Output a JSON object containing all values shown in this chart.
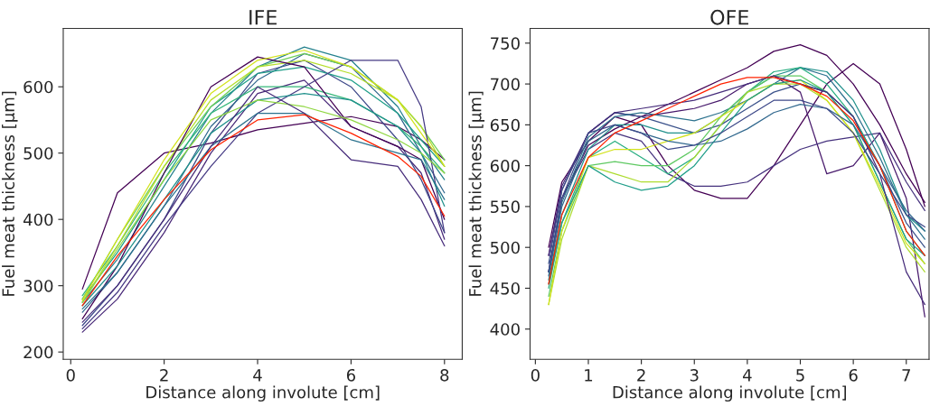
{
  "chart_data": [
    {
      "type": "line",
      "title": "IFE",
      "xlabel": "Distance along involute [cm]",
      "ylabel": "Fuel meat thickness [μm]",
      "x": [
        0.25,
        1,
        2,
        3,
        4,
        5,
        6,
        7,
        7.5,
        8
      ],
      "xlim": [
        -0.16,
        8.38
      ],
      "ylim": [
        189,
        688
      ],
      "xticks": [
        0,
        2,
        4,
        6,
        8
      ],
      "yticks": [
        200,
        300,
        400,
        500,
        600
      ],
      "series": [
        {
          "color": "#440154",
          "values": [
            295,
            440,
            500,
            515,
            535,
            545,
            555,
            540,
            520,
            490
          ]
        },
        {
          "color": "#482878",
          "values": [
            230,
            280,
            380,
            500,
            590,
            610,
            540,
            510,
            470,
            370
          ]
        },
        {
          "color": "#3e4989",
          "values": [
            240,
            300,
            400,
            530,
            620,
            640,
            600,
            520,
            460,
            380
          ]
        },
        {
          "color": "#31688e",
          "values": [
            260,
            320,
            420,
            540,
            610,
            650,
            630,
            560,
            500,
            440
          ]
        },
        {
          "color": "#26828e",
          "values": [
            275,
            340,
            450,
            560,
            630,
            660,
            640,
            570,
            510,
            460
          ]
        },
        {
          "color": "#1f9e89",
          "values": [
            280,
            350,
            460,
            570,
            620,
            630,
            610,
            560,
            520,
            480
          ]
        },
        {
          "color": "#35b779",
          "values": [
            285,
            360,
            470,
            560,
            600,
            600,
            580,
            540,
            510,
            470
          ]
        },
        {
          "color": "#6ece58",
          "values": [
            280,
            370,
            480,
            570,
            630,
            650,
            630,
            580,
            540,
            490
          ]
        },
        {
          "color": "#b5de2b",
          "values": [
            275,
            360,
            480,
            580,
            630,
            640,
            620,
            580,
            540,
            480
          ]
        },
        {
          "color": "#440154",
          "values": [
            250,
            330,
            470,
            600,
            645,
            630,
            540,
            510,
            490,
            400
          ]
        },
        {
          "color": "#443983",
          "values": [
            235,
            290,
            390,
            480,
            560,
            600,
            640,
            640,
            570,
            380
          ]
        },
        {
          "color": "#21918c",
          "values": [
            270,
            330,
            430,
            530,
            580,
            590,
            580,
            540,
            500,
            420
          ]
        },
        {
          "color": "#90d743",
          "values": [
            275,
            355,
            460,
            550,
            580,
            570,
            550,
            520,
            500,
            470
          ]
        },
        {
          "color": "#d2e21b",
          "values": [
            278,
            370,
            490,
            590,
            640,
            655,
            630,
            580,
            530,
            480
          ]
        },
        {
          "color": "#2c728e",
          "values": [
            265,
            320,
            420,
            510,
            560,
            560,
            520,
            500,
            490,
            430
          ]
        },
        {
          "color": "#472d7b",
          "values": [
            245,
            300,
            400,
            510,
            600,
            560,
            490,
            480,
            430,
            360
          ]
        },
        {
          "color": "#ff2200",
          "values": [
            270,
            345,
            430,
            505,
            550,
            558,
            530,
            495,
            465,
            405
          ]
        }
      ]
    },
    {
      "type": "line",
      "title": "OFE",
      "xlabel": "Distance along involute [cm]",
      "ylabel": "Fuel meat thickness [μm]",
      "x": [
        0.25,
        0.5,
        1,
        1.5,
        2,
        2.5,
        3,
        3.5,
        4,
        4.5,
        5,
        5.5,
        6,
        6.5,
        7,
        7.35
      ],
      "xlim": [
        -0.1,
        7.43
      ],
      "ylim": [
        363,
        768
      ],
      "xticks": [
        0,
        1,
        2,
        3,
        4,
        5,
        6,
        7
      ],
      "yticks": [
        400,
        450,
        500,
        550,
        600,
        650,
        700,
        750
      ],
      "series": [
        {
          "color": "#440154",
          "values": [
            470,
            560,
            625,
            645,
            660,
            675,
            690,
            705,
            720,
            740,
            748,
            735,
            700,
            650,
            590,
            555
          ]
        },
        {
          "color": "#440154",
          "values": [
            500,
            580,
            630,
            660,
            650,
            600,
            570,
            560,
            560,
            600,
            650,
            700,
            725,
            700,
            620,
            550
          ]
        },
        {
          "color": "#481a6c",
          "values": [
            490,
            570,
            640,
            665,
            660,
            665,
            670,
            680,
            700,
            710,
            690,
            590,
            600,
            640,
            560,
            415
          ]
        },
        {
          "color": "#46327e",
          "values": [
            470,
            560,
            620,
            640,
            630,
            590,
            575,
            575,
            580,
            600,
            620,
            630,
            635,
            640,
            580,
            545
          ]
        },
        {
          "color": "#3b528b",
          "values": [
            480,
            570,
            640,
            665,
            660,
            650,
            640,
            650,
            670,
            690,
            700,
            690,
            660,
            600,
            530,
            500
          ]
        },
        {
          "color": "#2c728e",
          "values": [
            470,
            555,
            635,
            660,
            665,
            660,
            655,
            665,
            680,
            700,
            720,
            710,
            670,
            610,
            540,
            510
          ]
        },
        {
          "color": "#21918c",
          "values": [
            460,
            540,
            620,
            650,
            650,
            640,
            640,
            660,
            690,
            710,
            720,
            715,
            680,
            620,
            540,
            520
          ]
        },
        {
          "color": "#28ae80",
          "values": [
            450,
            530,
            610,
            630,
            610,
            590,
            610,
            650,
            690,
            715,
            720,
            700,
            660,
            600,
            520,
            490
          ]
        },
        {
          "color": "#5ec962",
          "values": [
            440,
            520,
            600,
            605,
            600,
            600,
            620,
            660,
            690,
            710,
            710,
            690,
            650,
            580,
            510,
            480
          ]
        },
        {
          "color": "#addc30",
          "values": [
            430,
            510,
            600,
            590,
            580,
            580,
            610,
            650,
            690,
            700,
            700,
            680,
            640,
            570,
            500,
            470
          ]
        },
        {
          "color": "#d2e21b",
          "values": [
            430,
            520,
            610,
            620,
            620,
            630,
            640,
            660,
            680,
            700,
            705,
            680,
            640,
            575,
            505,
            480
          ]
        },
        {
          "color": "#1f9e89",
          "values": [
            455,
            530,
            600,
            580,
            570,
            575,
            600,
            640,
            680,
            700,
            705,
            690,
            650,
            580,
            510,
            490
          ]
        },
        {
          "color": "#31688e",
          "values": [
            465,
            550,
            630,
            650,
            640,
            630,
            625,
            630,
            645,
            665,
            675,
            670,
            650,
            600,
            545,
            520
          ]
        },
        {
          "color": "#472d7b",
          "values": [
            490,
            575,
            640,
            665,
            670,
            675,
            680,
            690,
            700,
            710,
            700,
            690,
            660,
            590,
            470,
            430
          ]
        },
        {
          "color": "#3e4989",
          "values": [
            470,
            560,
            640,
            650,
            640,
            620,
            625,
            640,
            660,
            680,
            680,
            670,
            640,
            590,
            540,
            525
          ]
        },
        {
          "color": "#ff2200",
          "values": [
            455,
            540,
            610,
            640,
            655,
            670,
            685,
            700,
            708,
            708,
            700,
            685,
            655,
            600,
            520,
            490
          ]
        }
      ]
    }
  ]
}
